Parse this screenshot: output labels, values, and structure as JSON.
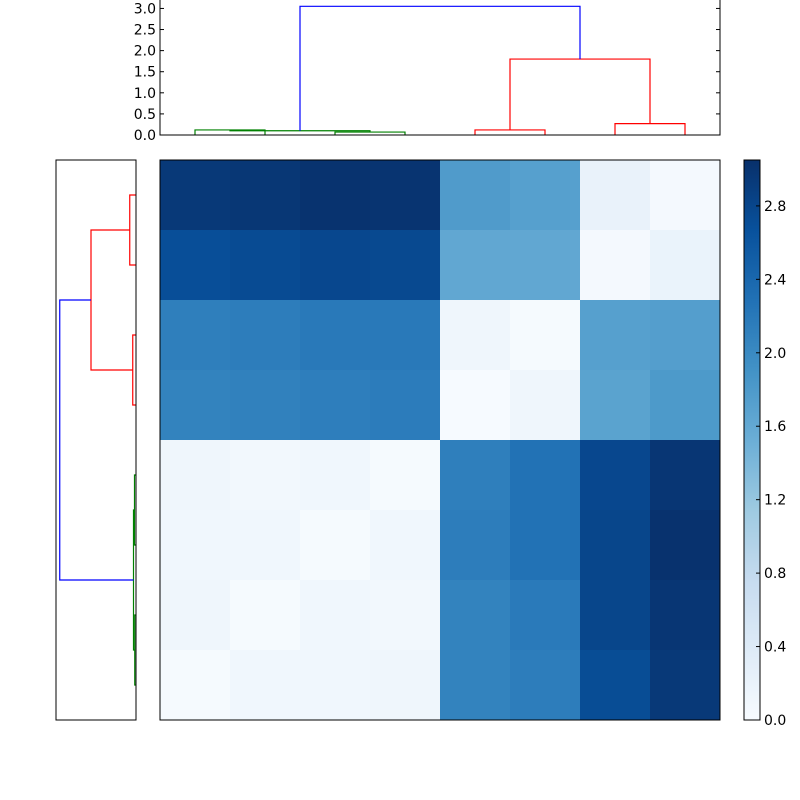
{
  "chart_data": [
    {
      "type": "dendrogram",
      "orientation": "top",
      "ylim": [
        0,
        3.2
      ],
      "yticks": [
        "0.0",
        "0.5",
        "1.0",
        "1.5",
        "2.0",
        "2.5",
        "3.0"
      ],
      "ytick_values": [
        0,
        0.5,
        1.0,
        1.5,
        2.0,
        2.5,
        3.0
      ],
      "leaf_count": 8,
      "links": [
        {
          "left": 0.5,
          "right": 1.5,
          "left_h": 0,
          "right_h": 0,
          "height": 0.12,
          "color": "#008000"
        },
        {
          "left": 2.5,
          "right": 3.5,
          "left_h": 0,
          "right_h": 0,
          "height": 0.07,
          "color": "#008000"
        },
        {
          "left": 1.0,
          "right": 3.0,
          "left_h": 0.12,
          "right_h": 0.07,
          "height": 0.1,
          "color": "#008000"
        },
        {
          "left": 4.5,
          "right": 5.5,
          "left_h": 0,
          "right_h": 0,
          "height": 0.12,
          "color": "#ff0000"
        },
        {
          "left": 6.5,
          "right": 7.5,
          "left_h": 0,
          "right_h": 0,
          "height": 0.27,
          "color": "#ff0000"
        },
        {
          "left": 5.0,
          "right": 7.0,
          "left_h": 0.12,
          "right_h": 0.27,
          "height": 1.8,
          "color": "#ff0000"
        },
        {
          "left": 2.0,
          "right": 6.0,
          "left_h": 0.1,
          "right_h": 1.8,
          "height": 3.05,
          "color": "#0000ff"
        }
      ]
    },
    {
      "type": "dendrogram",
      "orientation": "left",
      "xlim": [
        3.2,
        0
      ],
      "leaf_count": 8,
      "links": [
        {
          "left": 0.5,
          "right": 1.5,
          "left_h": 0,
          "right_h": 0,
          "height": 0.25,
          "color": "#ff0000"
        },
        {
          "left": 2.5,
          "right": 3.5,
          "left_h": 0,
          "right_h": 0,
          "height": 0.13,
          "color": "#ff0000"
        },
        {
          "left": 1.0,
          "right": 3.0,
          "left_h": 0.25,
          "right_h": 0.13,
          "height": 1.8,
          "color": "#ff0000"
        },
        {
          "left": 4.5,
          "right": 5.5,
          "left_h": 0,
          "right_h": 0,
          "height": 0.06,
          "color": "#008000"
        },
        {
          "left": 6.5,
          "right": 7.5,
          "left_h": 0,
          "right_h": 0,
          "height": 0.05,
          "color": "#008000"
        },
        {
          "left": 5.0,
          "right": 7.0,
          "left_h": 0.06,
          "right_h": 0.05,
          "height": 0.1,
          "color": "#008000"
        },
        {
          "left": 2.0,
          "right": 6.0,
          "left_h": 1.8,
          "right_h": 0.1,
          "height": 3.05,
          "color": "#0000ff"
        }
      ]
    },
    {
      "type": "heatmap",
      "rows": 8,
      "cols": 8,
      "values": [
        [
          2.95,
          2.97,
          3.02,
          3.0,
          1.78,
          1.72,
          0.22,
          0.05
        ],
        [
          2.7,
          2.74,
          2.78,
          2.76,
          1.62,
          1.62,
          0.05,
          0.2
        ],
        [
          2.12,
          2.15,
          2.2,
          2.2,
          0.12,
          0.03,
          1.72,
          1.74
        ],
        [
          2.08,
          2.1,
          2.14,
          2.16,
          0.02,
          0.12,
          1.68,
          1.8
        ],
        [
          0.12,
          0.08,
          0.1,
          0.03,
          2.12,
          2.28,
          2.78,
          2.98
        ],
        [
          0.1,
          0.1,
          0.03,
          0.1,
          2.15,
          2.28,
          2.8,
          3.03
        ],
        [
          0.12,
          0.03,
          0.1,
          0.08,
          2.08,
          2.18,
          2.8,
          2.98
        ],
        [
          0.03,
          0.1,
          0.1,
          0.12,
          2.08,
          2.15,
          2.72,
          2.95
        ]
      ],
      "colormap": "Blues",
      "colormap_stops": [
        "#f7fbff",
        "#deebf7",
        "#c6dbef",
        "#9ecae1",
        "#6baed6",
        "#4292c6",
        "#2171b5",
        "#08519c",
        "#08306b"
      ],
      "vmin": 0.0,
      "vmax": 3.05
    },
    {
      "type": "colorbar",
      "ticks": [
        "0.0",
        "0.4",
        "0.8",
        "1.2",
        "1.6",
        "2.0",
        "2.4",
        "2.8"
      ],
      "tick_values": [
        0,
        0.4,
        0.8,
        1.2,
        1.6,
        2.0,
        2.4,
        2.8
      ],
      "vmin": 0.0,
      "vmax": 3.05
    }
  ]
}
